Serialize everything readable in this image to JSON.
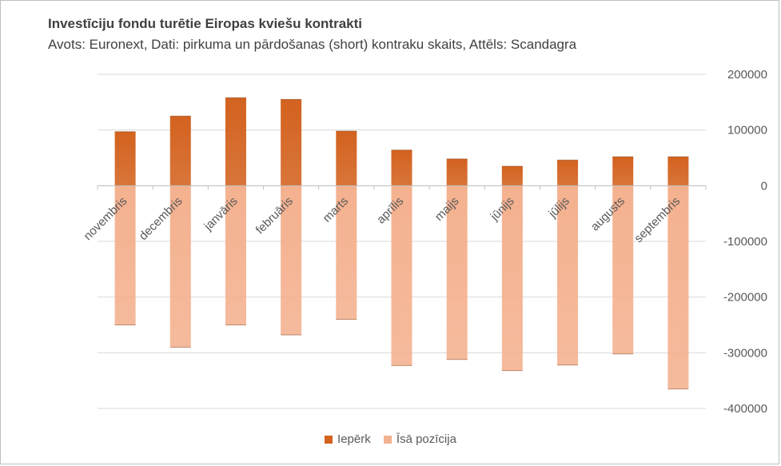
{
  "chart_data": {
    "type": "bar",
    "title": "Investīciju fondu turētie Eiropas kviešu kontrakti",
    "subtitle": "Avots: Euronext, Dati: pirkuma un pārdošanas (short) kontraku skaits, Attēls: Scandagra",
    "categories": [
      "novembris",
      "decembris",
      "janvāris",
      "februāris",
      "marts",
      "aprīlis",
      "maijs",
      "jūnijs",
      "jūlijs",
      "augusts",
      "septembris"
    ],
    "series": [
      {
        "name": "Iepērk",
        "color": "#d3621f",
        "values": [
          97000,
          125000,
          158000,
          155000,
          98000,
          64000,
          48000,
          35000,
          46000,
          52000,
          52000
        ]
      },
      {
        "name": "Īsā pozīcija",
        "color": "#f4b18f",
        "values": [
          -250000,
          -290000,
          -250000,
          -268000,
          -240000,
          -323000,
          -312000,
          -332000,
          -322000,
          -302000,
          -365000
        ]
      }
    ],
    "ylim": [
      -400000,
      200000
    ],
    "yticks": [
      200000,
      100000,
      0,
      -100000,
      -200000,
      -300000,
      -400000
    ],
    "ytick_labels": [
      "200000",
      "100000",
      "0",
      "-100000",
      "-200000",
      "-300000",
      "-400000"
    ],
    "y_axis_side": "right",
    "grid": true,
    "legend_position": "bottom",
    "xlabel": "",
    "ylabel": ""
  }
}
